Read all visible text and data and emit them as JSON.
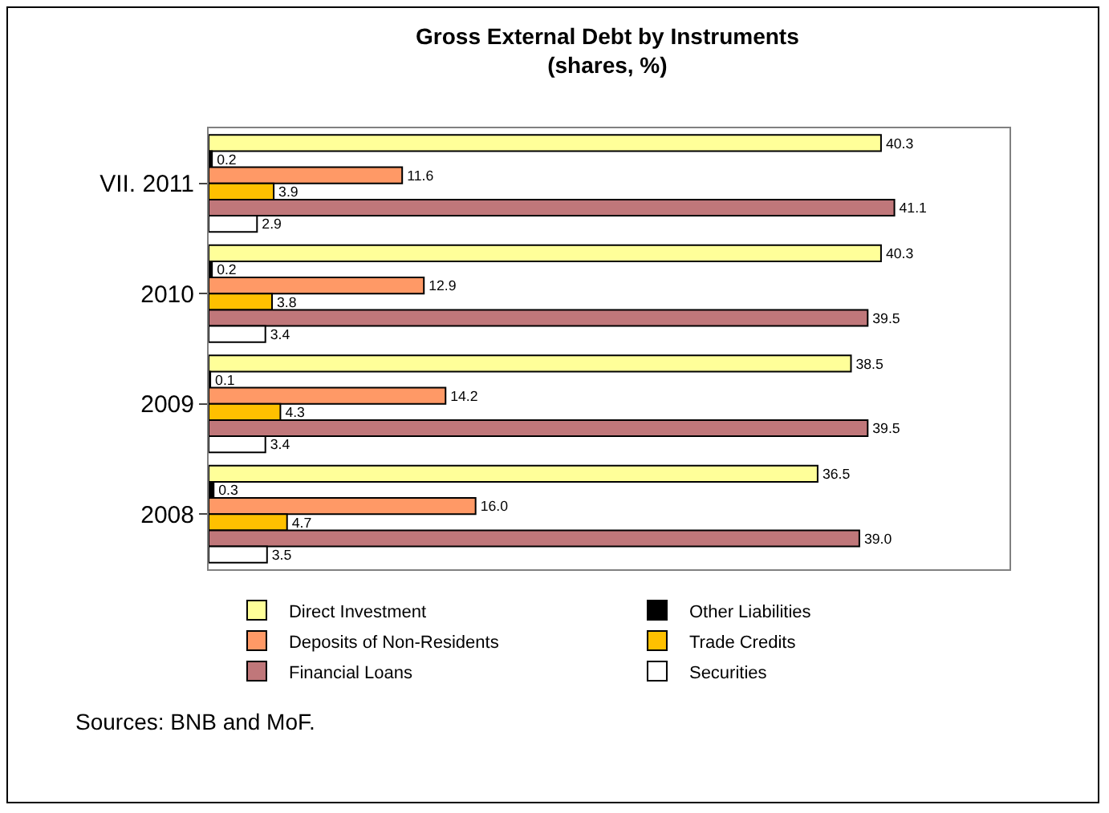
{
  "chart_data": {
    "type": "bar",
    "orientation": "horizontal",
    "title": "Gross External Debt by Instruments",
    "subtitle": "(shares, %)",
    "categories": [
      "VII. 2011",
      "2010",
      "2009",
      "2008"
    ],
    "series": [
      {
        "name": "Direct Investment",
        "color": "#ffff99",
        "values": [
          40.3,
          40.3,
          38.5,
          36.5
        ],
        "value_labels": [
          "40.3",
          "40.3",
          "38.5",
          "36.5"
        ]
      },
      {
        "name": "Other Liabilities",
        "color": "#000000",
        "values": [
          0.2,
          0.2,
          0.1,
          0.3
        ],
        "value_labels": [
          "0.2",
          "0.2",
          "0.1",
          "0.3"
        ]
      },
      {
        "name": "Deposits of Non-Residents",
        "color": "#ff9966",
        "values": [
          11.6,
          12.9,
          14.2,
          16.0
        ],
        "value_labels": [
          "11.6",
          "12.9",
          "14.2",
          "16.0"
        ]
      },
      {
        "name": "Trade Credits",
        "color": "#ffc000",
        "values": [
          3.9,
          3.8,
          4.3,
          4.7
        ],
        "value_labels": [
          "3.9",
          "3.8",
          "4.3",
          "4.7"
        ]
      },
      {
        "name": "Financial Loans",
        "color": "#c0777a",
        "values": [
          41.1,
          39.5,
          39.5,
          39.0
        ],
        "value_labels": [
          "41.1",
          "39.5",
          "39.5",
          "39.0"
        ]
      },
      {
        "name": "Securities",
        "color": "#ffffff",
        "values": [
          2.9,
          3.4,
          3.4,
          3.5
        ],
        "value_labels": [
          "2.9",
          "3.4",
          "3.4",
          "3.5"
        ]
      }
    ],
    "legend": "bottom",
    "annotations": [
      "Sources: BNB and MoF."
    ]
  }
}
